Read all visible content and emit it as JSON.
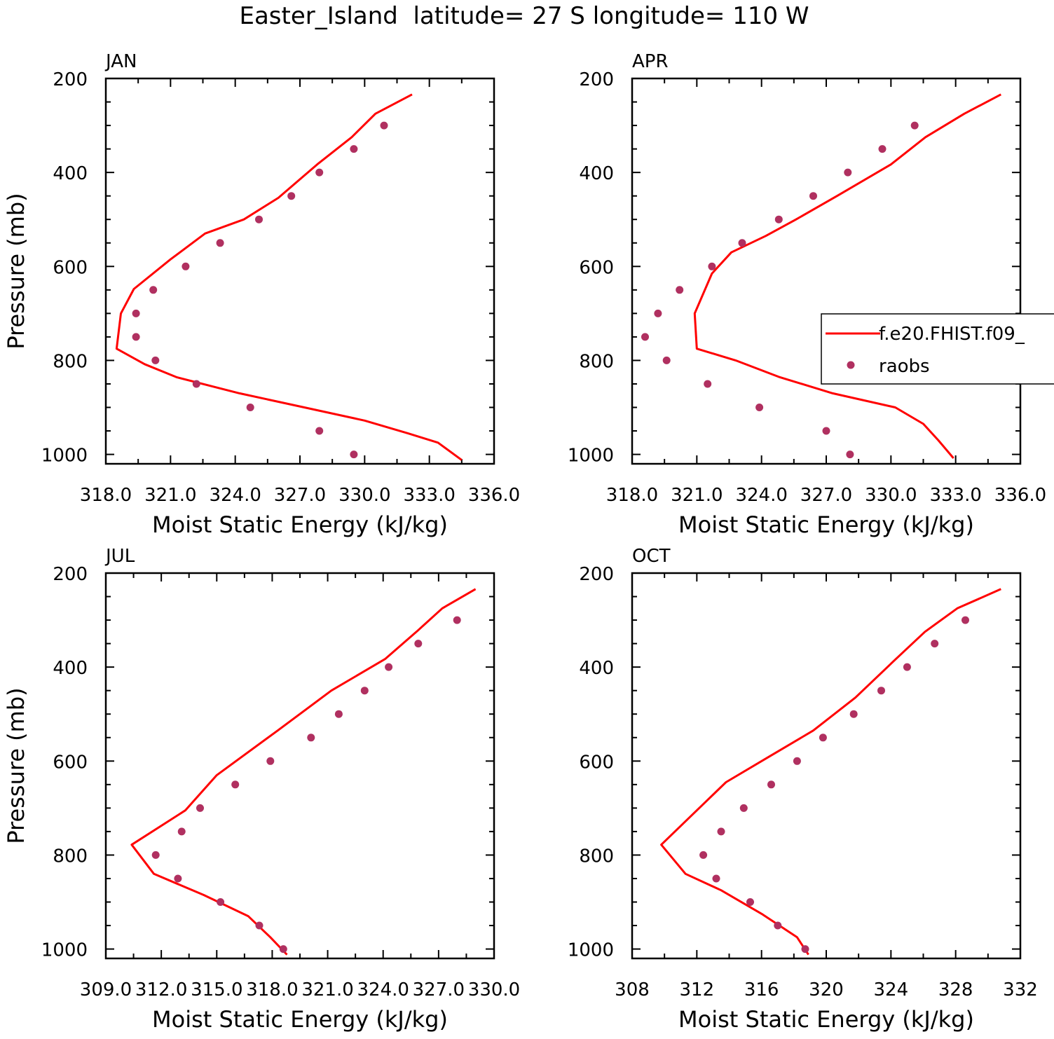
{
  "figure": {
    "title": "Easter_Island  latitude= 27 S longitude= 110 W"
  },
  "colors": {
    "model": "#ff0000",
    "obs": "#b03060",
    "axis": "#000000"
  },
  "legend": {
    "model_label": "f.e20.FHIST.f09_",
    "obs_label": "raobs"
  },
  "chart_data": [
    {
      "type": "line",
      "panel": "JAN",
      "xlabel": "Moist Static Energy (kJ/kg)",
      "ylabel": "Pressure (mb)",
      "xlim": [
        318,
        336
      ],
      "ylim": [
        1000,
        200
      ],
      "xticks": [
        "318.0",
        "321.0",
        "324.0",
        "327.0",
        "330.0",
        "333.0",
        "336.0"
      ],
      "yticks": [
        "200",
        "400",
        "600",
        "800",
        "1000"
      ],
      "series": [
        {
          "name": "f.e20.FHIST.f09_",
          "style": "line",
          "x": [
            332.2,
            330.5,
            329.4,
            327.8,
            326.0,
            324.4,
            322.6,
            321.0,
            319.3,
            318.7,
            318.5,
            319.8,
            321.3,
            324.2,
            327.2,
            330.0,
            332.0,
            333.4,
            334.5
          ],
          "y": [
            234,
            275,
            325,
            383,
            454,
            500,
            530,
            585,
            648,
            700,
            775,
            808,
            836,
            870,
            900,
            928,
            955,
            975,
            1012
          ]
        },
        {
          "name": "raobs",
          "style": "dots",
          "x": [
            330.9,
            329.5,
            327.9,
            326.6,
            325.1,
            323.3,
            321.7,
            320.2,
            319.4,
            319.4,
            320.3,
            322.2,
            324.7,
            327.9,
            329.5
          ],
          "y": [
            300,
            350,
            400,
            450,
            500,
            550,
            600,
            650,
            700,
            750,
            800,
            850,
            900,
            950,
            1000
          ]
        }
      ]
    },
    {
      "type": "line",
      "panel": "APR",
      "xlabel": "Moist Static Energy (kJ/kg)",
      "ylabel": "",
      "xlim": [
        318,
        336
      ],
      "ylim": [
        1000,
        200
      ],
      "xticks": [
        "318.0",
        "321.0",
        "324.0",
        "327.0",
        "330.0",
        "333.0",
        "336.0"
      ],
      "yticks": [
        "200",
        "400",
        "600",
        "800",
        "1000"
      ],
      "series": [
        {
          "name": "f.e20.FHIST.f09_",
          "style": "line",
          "x": [
            335.1,
            333.4,
            331.6,
            330.0,
            327.5,
            325.6,
            324.2,
            322.6,
            321.7,
            320.9,
            321.0,
            322.8,
            324.8,
            327.3,
            330.2,
            331.5,
            332.2,
            332.9
          ],
          "y": [
            234,
            275,
            325,
            383,
            450,
            500,
            535,
            570,
            615,
            700,
            775,
            800,
            835,
            870,
            900,
            935,
            970,
            1008
          ]
        },
        {
          "name": "raobs",
          "style": "dots",
          "x": [
            331.1,
            329.6,
            328.0,
            326.4,
            324.8,
            323.1,
            321.7,
            320.2,
            319.2,
            318.6,
            319.6,
            321.5,
            323.9,
            327.0,
            328.1
          ],
          "y": [
            300,
            350,
            400,
            450,
            500,
            550,
            600,
            650,
            700,
            750,
            800,
            850,
            900,
            950,
            1000
          ]
        }
      ]
    },
    {
      "type": "line",
      "panel": "JUL",
      "xlabel": "Moist Static Energy (kJ/kg)",
      "ylabel": "Pressure (mb)",
      "xlim": [
        309,
        330
      ],
      "ylim": [
        1000,
        200
      ],
      "xticks": [
        "309.0",
        "312.0",
        "315.0",
        "318.0",
        "321.0",
        "324.0",
        "327.0",
        "330.0"
      ],
      "yticks": [
        "200",
        "400",
        "600",
        "800",
        "1000"
      ],
      "series": [
        {
          "name": "f.e20.FHIST.f09_",
          "style": "line",
          "x": [
            329.0,
            327.2,
            325.8,
            324.1,
            321.2,
            318.3,
            315.0,
            313.3,
            310.4,
            311.6,
            314.3,
            316.7,
            317.9,
            318.8
          ],
          "y": [
            234,
            275,
            325,
            383,
            450,
            535,
            630,
            705,
            778,
            840,
            885,
            930,
            975,
            1012
          ]
        },
        {
          "name": "raobs",
          "style": "dots",
          "x": [
            328.0,
            325.9,
            324.3,
            323.0,
            321.6,
            320.1,
            317.9,
            316.0,
            314.1,
            313.1,
            311.7,
            312.9,
            315.2,
            317.3,
            318.6
          ],
          "y": [
            300,
            350,
            400,
            450,
            500,
            550,
            600,
            650,
            700,
            750,
            800,
            850,
            900,
            950,
            1000
          ]
        }
      ]
    },
    {
      "type": "line",
      "panel": "OCT",
      "xlabel": "Moist Static Energy (kJ/kg)",
      "ylabel": "",
      "xlim": [
        308,
        332
      ],
      "ylim": [
        1000,
        200
      ],
      "xticks": [
        "308",
        "312",
        "316",
        "320",
        "324",
        "328",
        "332"
      ],
      "yticks": [
        "200",
        "400",
        "600",
        "800",
        "1000"
      ],
      "series": [
        {
          "name": "f.e20.FHIST.f09_",
          "style": "line",
          "x": [
            330.8,
            328.1,
            326.1,
            324.3,
            321.8,
            319.2,
            316.5,
            313.8,
            312.0,
            309.8,
            311.3,
            313.5,
            316.0,
            318.2,
            318.9
          ],
          "y": [
            234,
            275,
            325,
            383,
            465,
            535,
            590,
            645,
            705,
            778,
            840,
            875,
            925,
            975,
            1012
          ]
        },
        {
          "name": "raobs",
          "style": "dots",
          "x": [
            328.6,
            326.7,
            325.0,
            323.4,
            321.7,
            319.8,
            318.2,
            316.6,
            314.9,
            313.5,
            312.4,
            313.2,
            315.3,
            317.0,
            318.7
          ],
          "y": [
            300,
            350,
            400,
            450,
            500,
            550,
            600,
            650,
            700,
            750,
            800,
            850,
            900,
            950,
            1000
          ]
        }
      ]
    }
  ]
}
